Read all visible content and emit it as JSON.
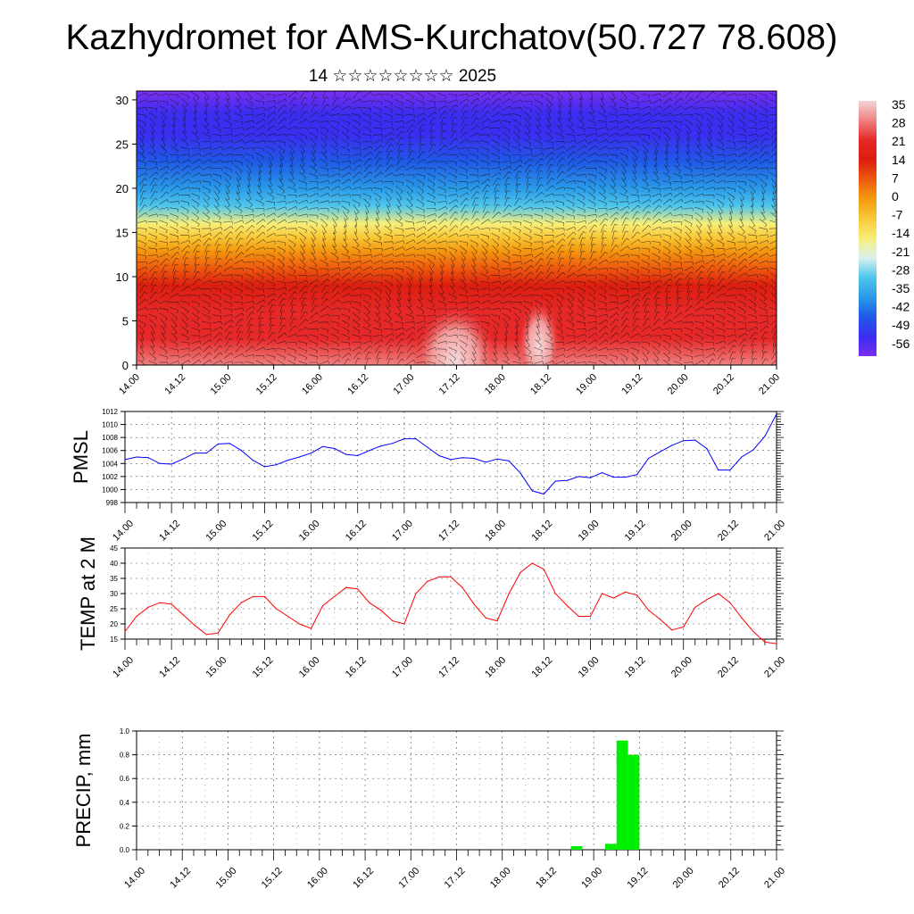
{
  "header": {
    "title": "Kazhydromet for AMS-Kurchatov(50.727 78.608)",
    "subtitle": "14 ☆☆☆☆☆☆☆☆ 2025"
  },
  "time_labels": [
    "14.00",
    "14.12",
    "15.00",
    "15.12",
    "16.00",
    "16.12",
    "17.00",
    "17.12",
    "18.00",
    "18.12",
    "19.00",
    "19.12",
    "20.00",
    "20.12",
    "21.00"
  ],
  "chart_data": [
    {
      "type": "heatmap",
      "ylim": [
        0,
        31
      ],
      "yticks": [
        "0",
        "5",
        "10",
        "15",
        "20",
        "25",
        "30"
      ],
      "colorbar": {
        "labels": [
          "35",
          "28",
          "21",
          "14",
          "7",
          "0",
          "-7",
          "-14",
          "-21",
          "-28",
          "-35",
          "-42",
          "-49",
          "-56"
        ],
        "colors": [
          "#f5d5d5",
          "#f08080",
          "#e62828",
          "#dc1e10",
          "#ee5a0e",
          "#f59a10",
          "#f8c838",
          "#f8ef7a",
          "#d8f0f0",
          "#4fc6ec",
          "#2a9ae8",
          "#1f5ae6",
          "#3a2ef0",
          "#7a2ef0"
        ]
      },
      "temperature_by_height": [
        {
          "z": 0,
          "t": 32
        },
        {
          "z": 3,
          "t": 26
        },
        {
          "z": 6,
          "t": 20
        },
        {
          "z": 9,
          "t": 12
        },
        {
          "z": 11,
          "t": 5
        },
        {
          "z": 13,
          "t": -2
        },
        {
          "z": 14.5,
          "t": -9
        },
        {
          "z": 16,
          "t": -17
        },
        {
          "z": 18,
          "t": -28
        },
        {
          "z": 20,
          "t": -38
        },
        {
          "z": 23,
          "t": -46
        },
        {
          "z": 26,
          "t": -52
        },
        {
          "z": 28.5,
          "t": -56
        },
        {
          "z": 31,
          "t": -60
        }
      ]
    },
    {
      "type": "line",
      "ylabel": "PMSL",
      "ylim": [
        998,
        1012
      ],
      "yticks": [
        "998",
        "1000",
        "1002",
        "1004",
        "1006",
        "1008",
        "1010",
        "1012"
      ],
      "color": "#0000ff",
      "x": [
        0,
        3,
        6,
        9,
        12,
        15,
        18,
        21,
        24,
        27,
        30,
        33,
        36,
        39,
        42,
        45,
        48,
        51,
        54,
        57,
        60,
        63,
        66,
        69,
        72,
        75,
        78,
        81,
        84,
        87,
        90,
        93,
        96,
        99,
        102,
        105,
        108,
        111,
        114,
        117,
        120,
        123,
        126,
        129,
        132,
        135,
        138,
        141,
        144,
        147,
        150,
        153,
        156,
        159,
        162,
        165,
        168
      ],
      "values": [
        1004.6,
        1005.0,
        1004.9,
        1004.0,
        1003.9,
        1004.7,
        1005.6,
        1005.6,
        1007.0,
        1007.1,
        1006.0,
        1004.5,
        1003.5,
        1003.8,
        1004.5,
        1005.0,
        1005.6,
        1006.6,
        1006.3,
        1005.4,
        1005.2,
        1006.0,
        1006.7,
        1007.1,
        1007.8,
        1007.8,
        1006.5,
        1005.2,
        1004.6,
        1004.9,
        1004.8,
        1004.2,
        1004.7,
        1004.4,
        1002.5,
        999.8,
        999.3,
        1001.3,
        1001.4,
        1002.0,
        1001.8,
        1002.6,
        1001.9,
        1001.9,
        1002.3,
        1004.8,
        1005.8,
        1006.8,
        1007.5,
        1007.6,
        1006.3,
        1003.0,
        1003.0,
        1005.0,
        1006.1,
        1008.2,
        1011.6
      ]
    },
    {
      "type": "line",
      "ylabel": "TEMP at 2 M",
      "ylim": [
        15,
        45
      ],
      "yticks": [
        "15",
        "20",
        "25",
        "30",
        "35",
        "40",
        "45"
      ],
      "color": "#ff0000",
      "x": [
        0,
        3,
        6,
        9,
        12,
        15,
        18,
        21,
        24,
        27,
        30,
        33,
        36,
        39,
        42,
        45,
        48,
        51,
        54,
        57,
        60,
        63,
        66,
        69,
        72,
        75,
        78,
        81,
        84,
        87,
        90,
        93,
        96,
        99,
        102,
        105,
        108,
        111,
        114,
        117,
        120,
        123,
        126,
        129,
        132,
        135,
        138,
        141,
        144,
        147,
        150,
        153,
        156,
        159,
        162,
        165,
        168
      ],
      "values": [
        17.5,
        22.5,
        25.5,
        27.0,
        26.5,
        23.0,
        19.5,
        16.5,
        17.0,
        23.0,
        27.0,
        29.0,
        29.0,
        25.0,
        22.5,
        20.0,
        18.5,
        26.0,
        29.0,
        32.0,
        31.5,
        27.0,
        24.5,
        21.0,
        20.0,
        30.0,
        34.0,
        35.5,
        35.5,
        32.0,
        26.5,
        22.0,
        21.0,
        30.0,
        37.0,
        40.0,
        38.0,
        30.0,
        26.0,
        22.5,
        22.5,
        30.0,
        28.5,
        30.5,
        29.5,
        24.5,
        21.5,
        18.0,
        19.0,
        25.5,
        28.0,
        30.0,
        27.0,
        22.0,
        17.5,
        14.0,
        13.5
      ]
    },
    {
      "type": "bar",
      "ylabel": "PRECIP, mm",
      "ylim": [
        0,
        1
      ],
      "yticks": [
        "0.0",
        "0.2",
        "0.4",
        "0.6",
        "0.8",
        "1.0"
      ],
      "color": "#00ee00",
      "x": [
        114,
        123,
        126,
        129
      ],
      "values": [
        0.03,
        0.05,
        0.92,
        0.8
      ]
    }
  ]
}
